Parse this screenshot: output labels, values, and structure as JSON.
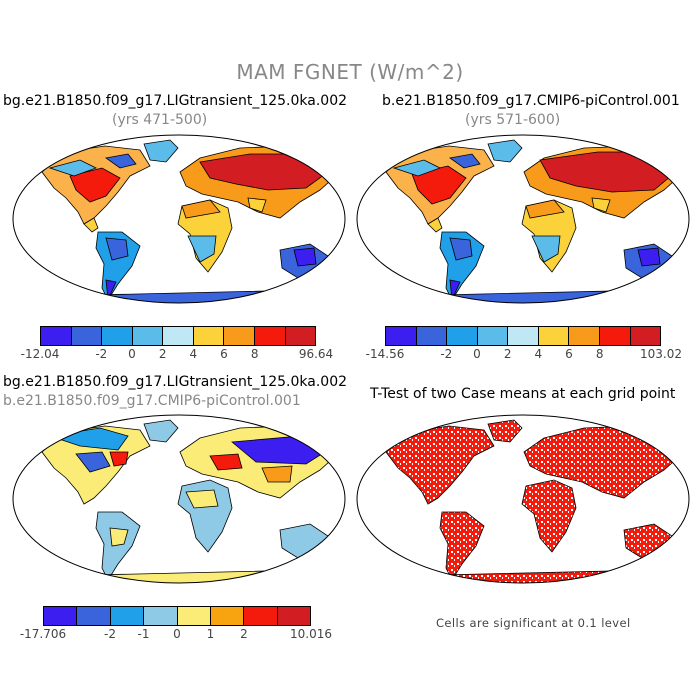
{
  "figure": {
    "title": "MAM FGNET (W/m^2)"
  },
  "panels": [
    {
      "title": "bg.e21.B1850.f09_g17.LIGtransient_125.0ka.002",
      "subtitle": "(yrs 471-500)",
      "colorbar": {
        "colors": [
          "#3c1ef0",
          "#3a64dc",
          "#1fa0e8",
          "#5bbcea",
          "#bfe8f4",
          "#fcd23a",
          "#f89a1a",
          "#f41a0c",
          "#d21e22"
        ],
        "labels": [
          "-12.04",
          "-2",
          "0",
          "2",
          "4",
          "6",
          "8",
          "96.64"
        ]
      }
    },
    {
      "title": "b.e21.B1850.f09_g17.CMIP6-piControl.001",
      "subtitle": "(yrs 571-600)",
      "colorbar": {
        "colors": [
          "#3c1ef0",
          "#3a64dc",
          "#1fa0e8",
          "#5bbcea",
          "#bfe8f4",
          "#fcd23a",
          "#f89a1a",
          "#f41a0c",
          "#d21e22"
        ],
        "labels": [
          "-14.56",
          "-2",
          "0",
          "2",
          "4",
          "6",
          "8",
          "103.02"
        ]
      }
    },
    {
      "title": "bg.e21.B1850.f09_g17.LIGtransient_125.0ka.002",
      "subtitle": "b.e21.B1850.f09_g17.CMIP6-piControl.001",
      "colorbar": {
        "colors": [
          "#3c1ef0",
          "#3a64dc",
          "#1fa0e8",
          "#8ec9e6",
          "#fbec78",
          "#f8a410",
          "#f41a0c",
          "#d21e22"
        ],
        "labels": [
          "-17.706",
          "-2",
          "-1",
          "0",
          "1",
          "2",
          "10.016"
        ]
      }
    },
    {
      "title": "T-Test of two Case means at each grid point",
      "note": "Cells are significant at 0.1 level"
    }
  ]
}
